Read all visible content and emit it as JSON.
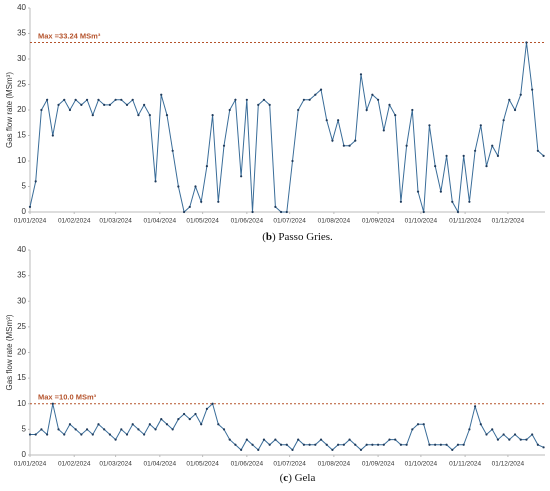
{
  "chart_data": [
    {
      "type": "line",
      "ylabel": "Gas flow rate (MSm³)",
      "caption_parts": [
        "(",
        "b",
        ") Passo Gries."
      ],
      "annotation": "Max =33.24 MSm³",
      "max_value": 33.24,
      "ylim": [
        0,
        40
      ],
      "yticks": [
        0,
        5,
        10,
        15,
        20,
        25,
        30,
        35,
        40
      ],
      "xlim": [
        0,
        361
      ],
      "xticks": [
        {
          "value": 0,
          "label": "01/01/2024"
        },
        {
          "value": 31,
          "label": "01/02/2024"
        },
        {
          "value": 60,
          "label": "01/03/2024"
        },
        {
          "value": 91,
          "label": "01/04/2024"
        },
        {
          "value": 121,
          "label": "01/05/2024"
        },
        {
          "value": 152,
          "label": "01/06/2024"
        },
        {
          "value": 182,
          "label": "01/07/2024"
        },
        {
          "value": 213,
          "label": "01/08/2024"
        },
        {
          "value": 244,
          "label": "01/09/2024"
        },
        {
          "value": 274,
          "label": "01/10/2024"
        },
        {
          "value": 305,
          "label": "01/11/2024"
        },
        {
          "value": 335,
          "label": "01/12/2024"
        }
      ],
      "color": "#3a6d99",
      "marker_color": "#1f3b5c",
      "max_color": "#b5532c",
      "x": [
        0,
        4,
        8,
        12,
        16,
        20,
        24,
        28,
        32,
        36,
        40,
        44,
        48,
        52,
        56,
        60,
        64,
        68,
        72,
        76,
        80,
        84,
        88,
        92,
        96,
        100,
        104,
        108,
        112,
        116,
        120,
        124,
        128,
        132,
        136,
        140,
        144,
        148,
        152,
        156,
        160,
        164,
        168,
        172,
        176,
        180,
        184,
        188,
        192,
        196,
        200,
        204,
        208,
        212,
        216,
        220,
        224,
        228,
        232,
        236,
        240,
        244,
        248,
        252,
        256,
        260,
        264,
        268,
        272,
        276,
        280,
        284,
        288,
        292,
        296,
        300,
        304,
        308,
        312,
        316,
        320,
        324,
        328,
        332,
        336,
        340,
        344,
        348,
        352,
        356,
        360
      ],
      "values": [
        1,
        6,
        20,
        22,
        15,
        21,
        22,
        20,
        22,
        21,
        22,
        19,
        22,
        21,
        21,
        22,
        22,
        21,
        22,
        19,
        21,
        19,
        6,
        23,
        19,
        12,
        5,
        0,
        1,
        5,
        2,
        9,
        19,
        2,
        13,
        20,
        22,
        7,
        22,
        0,
        21,
        22,
        21,
        1,
        0,
        0,
        10,
        20,
        22,
        22,
        23,
        24,
        18,
        14,
        18,
        13,
        13,
        14,
        27,
        20,
        23,
        22,
        16,
        21,
        19,
        2,
        13,
        20,
        4,
        0,
        17,
        9,
        4,
        11,
        2,
        0,
        11,
        2,
        12,
        17,
        9,
        13,
        11,
        18,
        22,
        20,
        23,
        33.24,
        24,
        12,
        11
      ]
    },
    {
      "type": "line",
      "ylabel": "Gas flow rate (MSm³)",
      "caption_parts": [
        "(",
        "c",
        ") Gela"
      ],
      "annotation": "Max =10.0 MSm³",
      "max_value": 10.0,
      "ylim": [
        0,
        40
      ],
      "yticks": [
        0,
        5,
        10,
        15,
        20,
        25,
        30,
        35,
        40
      ],
      "xlim": [
        0,
        361
      ],
      "xticks": [
        {
          "value": 0,
          "label": "01/01/2024"
        },
        {
          "value": 31,
          "label": "01/02/2024"
        },
        {
          "value": 60,
          "label": "01/03/2024"
        },
        {
          "value": 91,
          "label": "01/04/2024"
        },
        {
          "value": 121,
          "label": "01/05/2024"
        },
        {
          "value": 152,
          "label": "01/06/2024"
        },
        {
          "value": 182,
          "label": "01/07/2024"
        },
        {
          "value": 213,
          "label": "01/08/2024"
        },
        {
          "value": 244,
          "label": "01/09/2024"
        },
        {
          "value": 274,
          "label": "01/10/2024"
        },
        {
          "value": 305,
          "label": "01/11/2024"
        },
        {
          "value": 335,
          "label": "01/12/2024"
        }
      ],
      "color": "#3a6d99",
      "marker_color": "#1f3b5c",
      "max_color": "#b5532c",
      "x": [
        0,
        4,
        8,
        12,
        16,
        20,
        24,
        28,
        32,
        36,
        40,
        44,
        48,
        52,
        56,
        60,
        64,
        68,
        72,
        76,
        80,
        84,
        88,
        92,
        96,
        100,
        104,
        108,
        112,
        116,
        120,
        124,
        128,
        132,
        136,
        140,
        144,
        148,
        152,
        156,
        160,
        164,
        168,
        172,
        176,
        180,
        184,
        188,
        192,
        196,
        200,
        204,
        208,
        212,
        216,
        220,
        224,
        228,
        232,
        236,
        240,
        244,
        248,
        252,
        256,
        260,
        264,
        268,
        272,
        276,
        280,
        284,
        288,
        292,
        296,
        300,
        304,
        308,
        312,
        316,
        320,
        324,
        328,
        332,
        336,
        340,
        344,
        348,
        352,
        356,
        360
      ],
      "values": [
        4,
        4,
        5,
        4,
        10,
        5,
        4,
        6,
        5,
        4,
        5,
        4,
        6,
        5,
        4,
        3,
        5,
        4,
        6,
        5,
        4,
        6,
        5,
        7,
        6,
        5,
        7,
        8,
        7,
        8,
        6,
        9,
        10,
        6,
        5,
        3,
        2,
        1,
        3,
        2,
        1,
        3,
        2,
        3,
        2,
        2,
        1,
        3,
        2,
        2,
        2,
        3,
        2,
        1,
        2,
        2,
        3,
        2,
        1,
        2,
        2,
        2,
        2,
        3,
        3,
        2,
        2,
        5,
        6,
        6,
        2,
        2,
        2,
        2,
        1,
        2,
        2,
        5,
        9.5,
        6,
        4,
        5,
        3,
        4,
        3,
        4,
        3,
        3,
        4,
        2,
        1.5
      ]
    }
  ]
}
